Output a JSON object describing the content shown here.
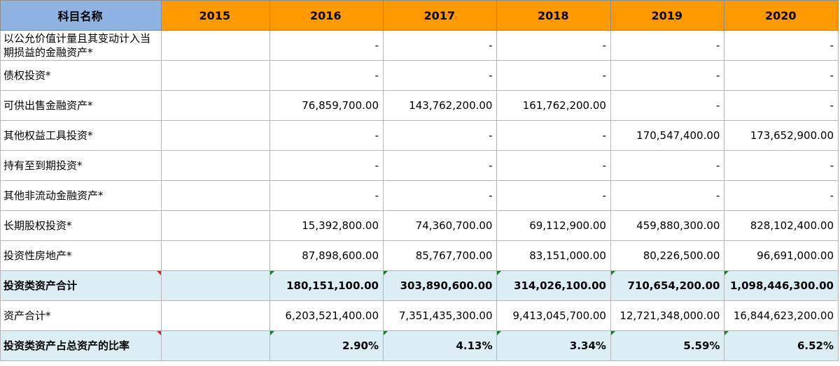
{
  "header": {
    "name_col": "科目名称",
    "years": [
      "2015",
      "2016",
      "2017",
      "2018",
      "2019",
      "2020"
    ]
  },
  "rows": [
    {
      "label": "以公允价值计量且其变动计入当期损益的金融资产*",
      "values": [
        "",
        "-",
        "-",
        "-",
        "-",
        "-"
      ]
    },
    {
      "label": "债权投资*",
      "values": [
        "",
        "-",
        "-",
        "-",
        "-",
        "-"
      ]
    },
    {
      "label": "可供出售金融资产*",
      "values": [
        "",
        "76,859,700.00",
        "143,762,200.00",
        "161,762,200.00",
        "-",
        "-"
      ]
    },
    {
      "label": "其他权益工具投资*",
      "values": [
        "",
        "-",
        "-",
        "-",
        "170,547,400.00",
        "173,652,900.00"
      ]
    },
    {
      "label": "持有至到期投资*",
      "values": [
        "",
        "-",
        "-",
        "-",
        "-",
        "-"
      ]
    },
    {
      "label": "其他非流动金融资产*",
      "values": [
        "",
        "-",
        "-",
        "-",
        "-",
        "-"
      ]
    },
    {
      "label": "长期股权投资*",
      "values": [
        "",
        "15,392,800.00",
        "74,360,700.00",
        "69,112,900.00",
        "459,880,300.00",
        "828,102,400.00"
      ]
    },
    {
      "label": "投资性房地产*",
      "values": [
        "",
        "87,898,600.00",
        "85,767,700.00",
        "83,151,000.00",
        "80,226,500.00",
        "96,691,000.00"
      ]
    },
    {
      "label": "投资类资产合计",
      "values": [
        "",
        "180,151,100.00",
        "303,890,600.00",
        "314,026,100.00",
        "710,654,200.00",
        "1,098,446,300.00"
      ]
    },
    {
      "label": "资产合计*",
      "values": [
        "",
        "6,203,521,400.00",
        "7,351,435,300.00",
        "9,413,045,700.00",
        "12,721,348,000.00",
        "16,844,623,200.00"
      ]
    },
    {
      "label": "投资类资产占总资产的比率",
      "values": [
        "",
        "2.90%",
        "4.13%",
        "3.34%",
        "5.59%",
        "6.52%"
      ]
    }
  ],
  "colors": {
    "header_orange": "#ff9900",
    "header_blue": "#8db4e2",
    "total_row_bg": "#dbeef3"
  }
}
